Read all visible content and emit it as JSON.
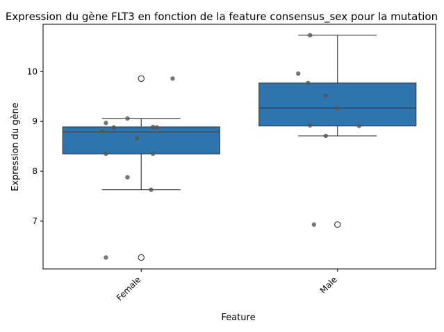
{
  "chart_data": {
    "type": "box",
    "title": "Expression du gène FLT3 en fonction de la feature consensus_sex pour la mutation",
    "xlabel": "Feature",
    "ylabel": "Expression du gène",
    "ylim": [
      6.04,
      10.95
    ],
    "yticks": [
      7,
      8,
      9,
      10
    ],
    "categories": [
      "Female",
      "Male"
    ],
    "box_color": "#2e75b0",
    "point_color": "#555555",
    "boxes": [
      {
        "category": "Female",
        "q1": 8.35,
        "median": 8.79,
        "q3": 8.89,
        "whisker_low": 7.63,
        "whisker_high": 9.06,
        "outliers": [
          9.86,
          6.27
        ]
      },
      {
        "category": "Male",
        "q1": 8.91,
        "median": 9.27,
        "q3": 9.77,
        "whisker_low": 8.71,
        "whisker_high": 10.73,
        "outliers": [
          6.93
        ]
      }
    ],
    "points": [
      {
        "category": "Female",
        "jitter": -0.18,
        "y": 8.97
      },
      {
        "category": "Female",
        "jitter": -0.07,
        "y": 9.06
      },
      {
        "category": "Female",
        "jitter": -0.14,
        "y": 8.88
      },
      {
        "category": "Female",
        "jitter": -0.2,
        "y": 8.8
      },
      {
        "category": "Female",
        "jitter": 0.06,
        "y": 8.89
      },
      {
        "category": "Female",
        "jitter": 0.08,
        "y": 8.88
      },
      {
        "category": "Female",
        "jitter": -0.02,
        "y": 8.66
      },
      {
        "category": "Female",
        "jitter": -0.18,
        "y": 8.35
      },
      {
        "category": "Female",
        "jitter": 0.06,
        "y": 8.35
      },
      {
        "category": "Female",
        "jitter": -0.07,
        "y": 7.88
      },
      {
        "category": "Female",
        "jitter": 0.05,
        "y": 7.63
      },
      {
        "category": "Female",
        "jitter": 0.16,
        "y": 9.86
      },
      {
        "category": "Female",
        "jitter": -0.18,
        "y": 6.27
      },
      {
        "category": "Male",
        "jitter": -0.14,
        "y": 10.73
      },
      {
        "category": "Male",
        "jitter": -0.2,
        "y": 9.96
      },
      {
        "category": "Male",
        "jitter": -0.15,
        "y": 9.77
      },
      {
        "category": "Male",
        "jitter": -0.06,
        "y": 9.52
      },
      {
        "category": "Male",
        "jitter": 0.0,
        "y": 9.27
      },
      {
        "category": "Male",
        "jitter": -0.14,
        "y": 8.92
      },
      {
        "category": "Male",
        "jitter": 0.11,
        "y": 8.91
      },
      {
        "category": "Male",
        "jitter": -0.06,
        "y": 8.71
      },
      {
        "category": "Male",
        "jitter": -0.12,
        "y": 6.93
      }
    ]
  }
}
